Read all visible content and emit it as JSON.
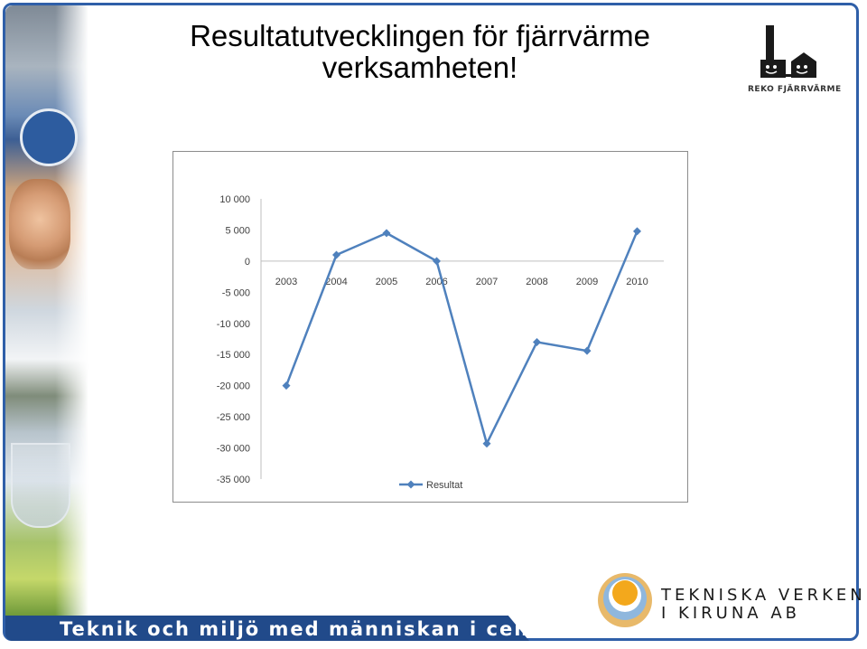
{
  "slide": {
    "title_line1": "Resultatutvecklingen för fjärrvärme",
    "title_line2": "verksamheten!",
    "bottom_tagline": "Teknik och miljö med människan i centrum",
    "reko_logo_text": "REKO FJÄRRVÄRME",
    "company_line1": "TEKNISKA VERKEN",
    "company_line2": "I KIRUNA AB",
    "colors": {
      "frame": "#2f5fa8",
      "band": "#214a8a",
      "series": "#4f81bd"
    },
    "icons": [
      "reko-fjarrvarme-logo-icon",
      "tekniska-verken-sun-logo-icon",
      "bicycle-sign-icon"
    ]
  },
  "chart_data": {
    "type": "line",
    "categories": [
      "2003",
      "2004",
      "2005",
      "2006",
      "2007",
      "2008",
      "2009",
      "2010"
    ],
    "series": [
      {
        "name": "Resultat",
        "values": [
          -20000,
          1000,
          4500,
          0,
          -29300,
          -13000,
          -14400,
          4800
        ]
      }
    ],
    "yticks": [
      "10 000",
      "5 000",
      "0",
      "-5 000",
      "-10 000",
      "-15 000",
      "-20 000",
      "-25 000",
      "-30 000",
      "-35 000"
    ],
    "ytick_values": [
      10000,
      5000,
      0,
      -5000,
      -10000,
      -15000,
      -20000,
      -25000,
      -30000,
      -35000
    ],
    "ylim": [
      -35000,
      10000
    ],
    "legend_position": "bottom",
    "grid": false
  }
}
